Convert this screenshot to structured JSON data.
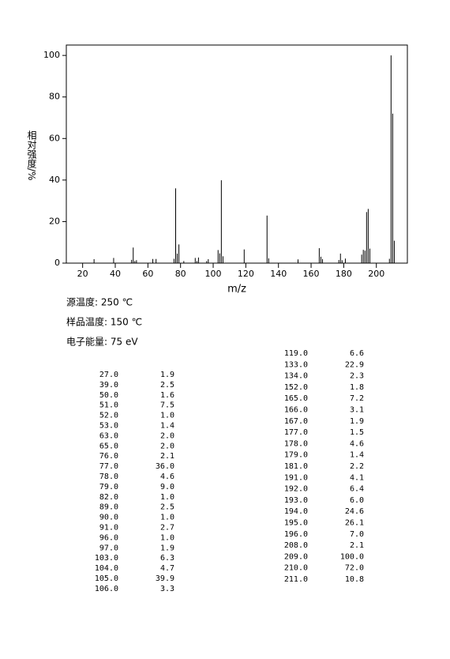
{
  "chart_data": {
    "type": "bar",
    "x_label": "m/z",
    "y_label": "相对强度/%",
    "color": "#000000",
    "x": [
      27,
      39,
      50,
      51,
      52,
      53,
      63,
      65,
      76,
      77,
      78,
      79,
      82,
      89,
      90,
      91,
      96,
      97,
      103,
      104,
      105,
      106,
      119,
      133,
      134,
      152,
      165,
      166,
      167,
      177,
      178,
      179,
      181,
      191,
      192,
      193,
      194,
      195,
      196,
      208,
      209,
      210,
      211
    ],
    "values": [
      1.9,
      2.5,
      1.6,
      7.5,
      1.0,
      1.4,
      2.0,
      2.0,
      2.1,
      36.0,
      4.6,
      9.0,
      1.0,
      2.5,
      1.0,
      2.7,
      1.0,
      1.9,
      6.3,
      4.7,
      39.9,
      3.3,
      6.6,
      22.9,
      2.3,
      1.8,
      7.2,
      3.1,
      1.9,
      1.5,
      4.6,
      1.4,
      2.2,
      4.1,
      6.4,
      6.0,
      24.6,
      26.1,
      7.0,
      2.1,
      100.0,
      72.0,
      10.8
    ],
    "xlim": [
      10,
      219
    ],
    "ylim": [
      0,
      105
    ],
    "xticks": [
      20,
      40,
      60,
      80,
      100,
      120,
      140,
      160,
      180,
      200
    ],
    "yticks": [
      0,
      20,
      40,
      60,
      80,
      100
    ]
  },
  "conditions": [
    "源温度: 250 ℃",
    "样品温度: 150 ℃",
    "电子能量: 75 eV"
  ],
  "peak_table": {
    "left": [
      [
        "27.0",
        "1.9"
      ],
      [
        "39.0",
        "2.5"
      ],
      [
        "50.0",
        "1.6"
      ],
      [
        "51.0",
        "7.5"
      ],
      [
        "52.0",
        "1.0"
      ],
      [
        "53.0",
        "1.4"
      ],
      [
        "63.0",
        "2.0"
      ],
      [
        "65.0",
        "2.0"
      ],
      [
        "76.0",
        "2.1"
      ],
      [
        "77.0",
        "36.0"
      ],
      [
        "78.0",
        "4.6"
      ],
      [
        "79.0",
        "9.0"
      ],
      [
        "82.0",
        "1.0"
      ],
      [
        "89.0",
        "2.5"
      ],
      [
        "90.0",
        "1.0"
      ],
      [
        "91.0",
        "2.7"
      ],
      [
        "96.0",
        "1.0"
      ],
      [
        "97.0",
        "1.9"
      ],
      [
        "103.0",
        "6.3"
      ],
      [
        "104.0",
        "4.7"
      ],
      [
        "105.0",
        "39.9"
      ],
      [
        "106.0",
        "3.3"
      ]
    ],
    "right": [
      [
        "119.0",
        "6.6"
      ],
      [
        "133.0",
        "22.9"
      ],
      [
        "134.0",
        "2.3"
      ],
      [
        "152.0",
        "1.8"
      ],
      [
        "165.0",
        "7.2"
      ],
      [
        "166.0",
        "3.1"
      ],
      [
        "167.0",
        "1.9"
      ],
      [
        "177.0",
        "1.5"
      ],
      [
        "178.0",
        "4.6"
      ],
      [
        "179.0",
        "1.4"
      ],
      [
        "181.0",
        "2.2"
      ],
      [
        "191.0",
        "4.1"
      ],
      [
        "192.0",
        "6.4"
      ],
      [
        "193.0",
        "6.0"
      ],
      [
        "194.0",
        "24.6"
      ],
      [
        "195.0",
        "26.1"
      ],
      [
        "196.0",
        "7.0"
      ],
      [
        "208.0",
        "2.1"
      ],
      [
        "209.0",
        "100.0"
      ],
      [
        "210.0",
        "72.0"
      ],
      [
        "211.0",
        "10.8"
      ]
    ]
  }
}
